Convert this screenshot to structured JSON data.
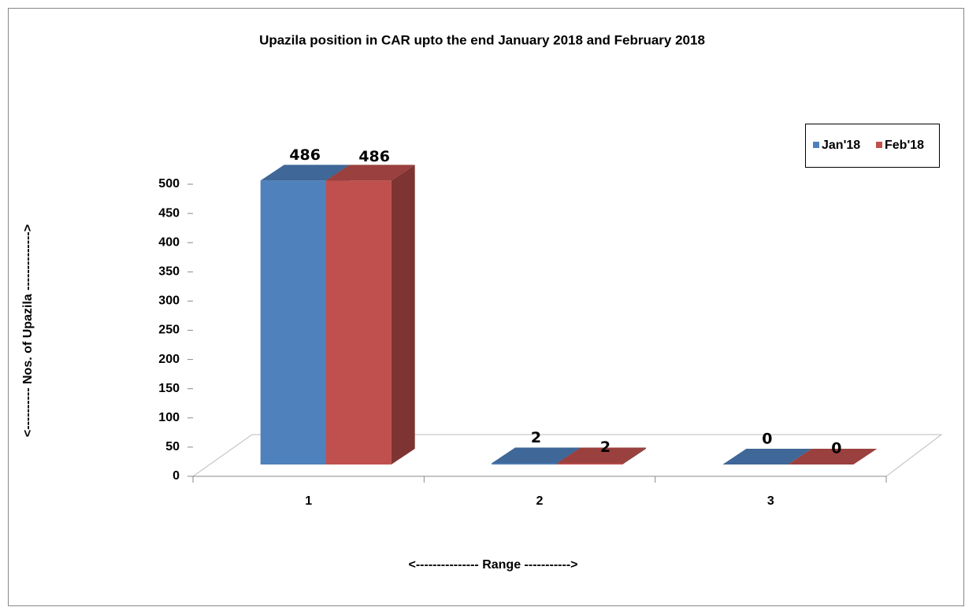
{
  "chart_data": {
    "type": "bar3d",
    "title": "Upazila position in CAR upto the end January 2018 and February 2018",
    "x_label": "<--------------- Range ----------->",
    "y_label": "<---------- Nos. of Upazila -------------->",
    "categories": [
      "1",
      "2",
      "3"
    ],
    "series": [
      {
        "name": "Jan'18",
        "color": "#4f81bd",
        "values": [
          486,
          2,
          0
        ]
      },
      {
        "name": "Feb'18",
        "color": "#c0504d",
        "values": [
          486,
          2,
          0
        ]
      }
    ],
    "ylim": [
      0,
      500
    ],
    "yticks": [
      0,
      50,
      100,
      150,
      200,
      250,
      300,
      350,
      400,
      450,
      500
    ],
    "legend": "right"
  }
}
